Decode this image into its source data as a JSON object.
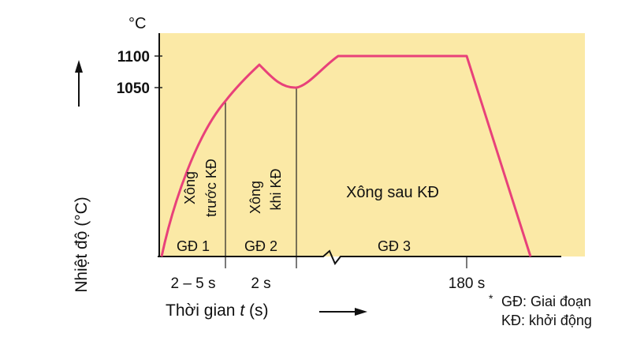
{
  "chart_data": {
    "type": "line",
    "title": "",
    "ylabel": "Nhiệt độ (°C)",
    "y_unit": "°C",
    "xlabel_prefix": "Thời gian ",
    "xlabel_var": "t",
    "xlabel_suffix": " (s)",
    "yticks": [
      {
        "value": 1050,
        "label": "1050"
      },
      {
        "value": 1100,
        "label": "1100"
      }
    ],
    "xticks": [
      {
        "label": "2 – 5 s"
      },
      {
        "label": "2 s"
      },
      {
        "label": "180 s"
      }
    ],
    "stage_labels": [
      "GĐ 1",
      "GĐ 2",
      "GĐ 3"
    ],
    "phase_labels": {
      "p1_line1": "Xông",
      "p1_line2": "trước KĐ",
      "p2_line1": "Xông",
      "p2_line2": "khi KĐ",
      "p3": "Xông sau KĐ"
    },
    "legend_notes": [
      {
        "marker": "*",
        "text": "GĐ: Giai đoạn"
      },
      {
        "marker": "",
        "text": "KĐ: khởi động"
      }
    ],
    "series_color": "#e8417a",
    "fill_color": "#fbe9a6",
    "series": [
      {
        "name": "",
        "points_desc": "0→~1030 (end GĐ1), peak ~1090, dip 1050 (end GĐ2), plateau 1100 until 180 s, then fall to 0"
      }
    ]
  }
}
